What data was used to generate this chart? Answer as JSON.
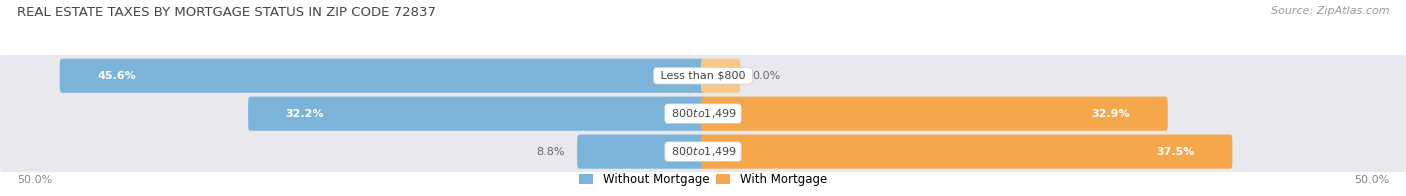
{
  "title": "REAL ESTATE TAXES BY MORTGAGE STATUS IN ZIP CODE 72837",
  "source": "Source: ZipAtlas.com",
  "rows": [
    {
      "label": "Less than $800",
      "without_mortgage": 45.6,
      "with_mortgage": 0.0
    },
    {
      "label": "$800 to $1,499",
      "without_mortgage": 32.2,
      "with_mortgage": 32.9
    },
    {
      "label": "$800 to $1,499",
      "without_mortgage": 8.8,
      "with_mortgage": 37.5
    }
  ],
  "x_min": -50.0,
  "x_max": 50.0,
  "color_without": "#7BB3D9",
  "color_with": "#F5A84B",
  "color_with_light": "#F8C88A",
  "bg_color": "#FFFFFF",
  "bar_bg_color": "#E8E8EE",
  "title_color": "#444444",
  "source_color": "#999999",
  "tick_color": "#888888",
  "label_color_dark": "#666666",
  "title_fontsize": 9.5,
  "source_fontsize": 8,
  "legend_fontsize": 8.5,
  "label_fontsize": 8,
  "tick_fontsize": 8
}
